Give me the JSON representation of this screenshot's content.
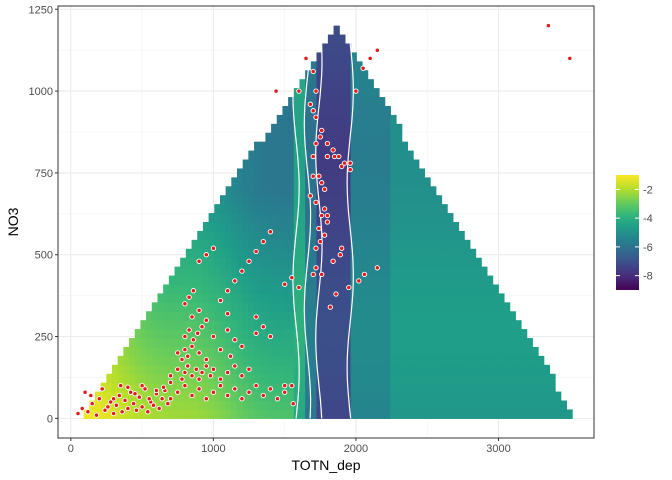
{
  "chart_data": {
    "type": "heatmap",
    "title": "",
    "xlabel": "TOTN_dep",
    "ylabel": "NO3",
    "xlim": [
      -90,
      3670
    ],
    "ylim": [
      -60,
      1260
    ],
    "x_ticks": [
      0,
      1000,
      2000,
      3000
    ],
    "y_ticks": [
      0,
      250,
      500,
      750,
      1000,
      1250
    ],
    "x_tick_labels": [
      "0",
      "1000",
      "2000",
      "3000"
    ],
    "y_tick_labels": [
      "0",
      "250",
      "500",
      "750",
      "1000",
      "1250"
    ],
    "grid": true,
    "legend": {
      "placement": "right",
      "range": [
        -9,
        -1
      ],
      "breaks": [
        -2,
        -4,
        -6,
        -8
      ],
      "break_labels": [
        "-2",
        "-4",
        "-6",
        "-8"
      ],
      "colors": [
        "#440154",
        "#482878",
        "#3e4989",
        "#31688e",
        "#26828e",
        "#1f9e89",
        "#35b779",
        "#6ece58",
        "#b5de2b",
        "#fde725"
      ]
    },
    "surface": {
      "x_min": 1000,
      "x_mid": 1860,
      "x_max": 3550,
      "y_min": 0,
      "y_max": 1200,
      "bands": [
        {
          "x_start": 1580,
          "x_end": 1660,
          "value": -4.2
        },
        {
          "x_start": 1660,
          "x_end": 1740,
          "value": -5.8
        },
        {
          "x_start": 1740,
          "x_end": 1960,
          "value": -7.3
        },
        {
          "x_start": 1960,
          "x_end": 2250,
          "value": -5.4
        },
        {
          "x_start": 2250,
          "x_end": 3550,
          "value": -4.8
        }
      ]
    },
    "points": {
      "color": "#e31a1c",
      "x": [
        50,
        80,
        120,
        150,
        180,
        200,
        240,
        260,
        280,
        300,
        320,
        340,
        360,
        380,
        400,
        420,
        440,
        460,
        480,
        500,
        520,
        540,
        560,
        580,
        600,
        620,
        640,
        660,
        680,
        700,
        100,
        140,
        220,
        300,
        350,
        400,
        450,
        500,
        550,
        600,
        650,
        700,
        750,
        800,
        850,
        900,
        950,
        1000,
        1050,
        1100,
        1150,
        1200,
        1250,
        1300,
        1350,
        1400,
        1450,
        1500,
        1550,
        700,
        750,
        780,
        800,
        820,
        850,
        880,
        900,
        920,
        950,
        980,
        1000,
        1050,
        1100,
        1150,
        1200,
        1250,
        750,
        780,
        800,
        820,
        850,
        900,
        950,
        1050,
        1120,
        1200,
        800,
        830,
        860,
        890,
        920,
        1000,
        1100,
        1150,
        1300,
        1350,
        1400,
        850,
        900,
        950,
        1100,
        1300,
        800,
        830,
        860,
        1500,
        1550,
        1600,
        1700,
        1720,
        1740,
        1760,
        1780,
        1720,
        1750,
        1780,
        1800,
        1840,
        1890,
        1900,
        1720,
        1760,
        1800,
        1680,
        1700,
        1700,
        1720,
        1750,
        1800,
        1850,
        1900,
        1960,
        2000,
        2050,
        2100,
        2150,
        3350,
        3500,
        1440,
        1500,
        1560,
        1600,
        1650,
        1700,
        1720,
        1680,
        1700,
        1720,
        1760,
        1800,
        1840,
        1880,
        1920,
        1960,
        1740,
        1760,
        1780,
        1820,
        1860,
        1950,
        2020,
        2060,
        2150,
        900,
        950,
        1000,
        1050,
        1100,
        1150,
        1200,
        1250,
        1300,
        1350,
        1400
      ],
      "y": [
        15,
        30,
        20,
        45,
        10,
        60,
        25,
        35,
        50,
        15,
        40,
        70,
        20,
        55,
        30,
        80,
        45,
        25,
        65,
        35,
        90,
        20,
        50,
        40,
        75,
        30,
        60,
        85,
        45,
        110,
        80,
        70,
        90,
        60,
        100,
        95,
        75,
        100,
        60,
        85,
        95,
        60,
        80,
        100,
        70,
        90,
        60,
        80,
        100,
        70,
        90,
        60,
        80,
        100,
        70,
        90,
        60,
        80,
        100,
        130,
        150,
        120,
        140,
        160,
        130,
        150,
        120,
        140,
        160,
        130,
        150,
        120,
        140,
        160,
        130,
        150,
        200,
        180,
        210,
        190,
        220,
        200,
        180,
        210,
        190,
        220,
        250,
        270,
        240,
        260,
        280,
        250,
        270,
        240,
        260,
        280,
        250,
        310,
        330,
        300,
        320,
        310,
        350,
        370,
        390,
        410,
        430,
        400,
        440,
        520,
        580,
        620,
        640,
        660,
        540,
        560,
        600,
        480,
        500,
        520,
        460,
        440,
        620,
        680,
        740,
        800,
        840,
        860,
        800,
        800,
        770,
        780,
        1000,
        1070,
        1100,
        1125,
        1200,
        1100,
        1000,
        100,
        45,
        1000,
        1100,
        1060,
        1000,
        960,
        940,
        920,
        880,
        840,
        820,
        800,
        780,
        760,
        740,
        720,
        700,
        340,
        380,
        400,
        420,
        440,
        460,
        480,
        500,
        520,
        360,
        390,
        420,
        450,
        480,
        510,
        540,
        570,
        600,
        630,
        660
      ]
    }
  }
}
